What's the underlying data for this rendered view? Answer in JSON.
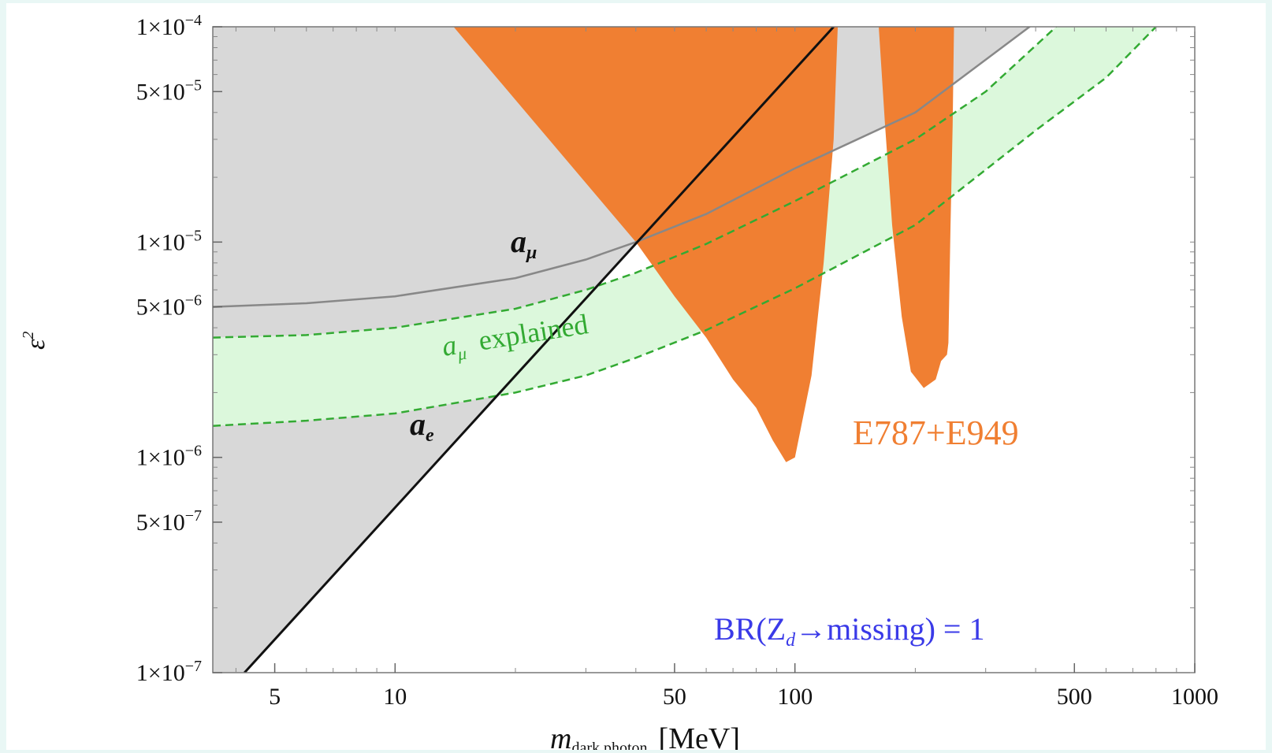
{
  "chart_data": {
    "type": "area",
    "title": "",
    "xlabel_main": "m",
    "xlabel_sub": "dark photon",
    "xlabel_unit": "[MeV]",
    "ylabel": "ε",
    "ylabel_sup": "2",
    "x_scale": "log",
    "y_scale": "log",
    "xlim": [
      3.5,
      1000
    ],
    "ylim": [
      1e-07,
      0.0001
    ],
    "x_ticks": [
      {
        "value": 5,
        "label": "5"
      },
      {
        "value": 10,
        "label": "10"
      },
      {
        "value": 50,
        "label": "50"
      },
      {
        "value": 100,
        "label": "100"
      },
      {
        "value": 500,
        "label": "500"
      },
      {
        "value": 1000,
        "label": "1000"
      }
    ],
    "y_ticks": [
      {
        "value": 0.0001,
        "mant": "1",
        "exp": "−4"
      },
      {
        "value": 5e-05,
        "mant": "5",
        "exp": "−5"
      },
      {
        "value": 1e-05,
        "mant": "1",
        "exp": "−5"
      },
      {
        "value": 5e-06,
        "mant": "5",
        "exp": "−6"
      },
      {
        "value": 1e-06,
        "mant": "1",
        "exp": "−6"
      },
      {
        "value": 5e-07,
        "mant": "5",
        "exp": "−7"
      },
      {
        "value": 1e-07,
        "mant": "1",
        "exp": "−7"
      }
    ],
    "tick_times": "×10",
    "curves": {
      "a_mu_bound": [
        [
          3.5,
          5e-06
        ],
        [
          6,
          5.2e-06
        ],
        [
          10,
          5.6e-06
        ],
        [
          20,
          6.8e-06
        ],
        [
          30,
          8.3e-06
        ],
        [
          40,
          1e-05
        ],
        [
          60,
          1.35e-05
        ],
        [
          100,
          2.2e-05
        ],
        [
          200,
          4e-05
        ],
        [
          400,
          0.000105
        ]
      ],
      "a_mu_band_upper": [
        [
          3.5,
          3.6e-06
        ],
        [
          6,
          3.7e-06
        ],
        [
          10,
          4e-06
        ],
        [
          20,
          4.9e-06
        ],
        [
          30,
          6e-06
        ],
        [
          40,
          7.2e-06
        ],
        [
          60,
          9.8e-06
        ],
        [
          100,
          1.55e-05
        ],
        [
          200,
          3e-05
        ],
        [
          300,
          5e-05
        ],
        [
          450,
          0.0001
        ]
      ],
      "a_mu_band_lower": [
        [
          3.5,
          1.4e-06
        ],
        [
          6,
          1.48e-06
        ],
        [
          10,
          1.6e-06
        ],
        [
          20,
          2e-06
        ],
        [
          30,
          2.4e-06
        ],
        [
          40,
          2.9e-06
        ],
        [
          60,
          3.9e-06
        ],
        [
          100,
          6.1e-06
        ],
        [
          200,
          1.2e-05
        ],
        [
          400,
          3.3e-05
        ],
        [
          600,
          5.8e-05
        ],
        [
          800,
          0.0001
        ]
      ],
      "a_e_line": [
        [
          4.2,
          1e-07
        ],
        [
          125,
          0.0001
        ]
      ],
      "e787_e949_region_1": [
        [
          14,
          0.0001
        ],
        [
          40,
          1e-05
        ],
        [
          50,
          5.6e-06
        ],
        [
          60,
          3.6e-06
        ],
        [
          70,
          2.3e-06
        ],
        [
          80,
          1.7e-06
        ],
        [
          88,
          1.2e-06
        ],
        [
          95,
          9.5e-07
        ],
        [
          100,
          1e-06
        ],
        [
          110,
          2.4e-06
        ],
        [
          118,
          8e-06
        ],
        [
          125,
          3e-05
        ],
        [
          128,
          0.0001
        ]
      ],
      "e787_e949_region_2": [
        [
          162,
          0.0001
        ],
        [
          168,
          3.5e-05
        ],
        [
          175,
          1.2e-05
        ],
        [
          185,
          4.5e-06
        ],
        [
          195,
          2.5e-06
        ],
        [
          210,
          2.1e-06
        ],
        [
          225,
          2.3e-06
        ],
        [
          232,
          2.8e-06
        ],
        [
          240,
          3e-06
        ],
        [
          242,
          3.4e-06
        ],
        [
          245,
          1.2e-05
        ],
        [
          248,
          3.5e-05
        ],
        [
          250,
          0.0001
        ]
      ],
      "gray_gap_region": [
        [
          128,
          0.0001
        ],
        [
          160,
          0.0001
        ],
        [
          159,
          5e-05
        ],
        [
          130,
          5e-05
        ]
      ]
    },
    "annotations": {
      "a_mu_label": "a",
      "a_mu_sub": "μ",
      "a_e_label": "a",
      "a_e_sub": "e",
      "explained_a": "a",
      "explained_sub": "μ",
      "explained_text": "explained",
      "experiment": "E787+E949",
      "br_text": "BR(Z",
      "br_sub": "d",
      "br_rest": "→missing) = 1"
    },
    "colors": {
      "excluded_gray": "#d8d8d8",
      "orange": "#f07f32",
      "green_band": "#dcf8dc",
      "green_dashed": "#33aa33",
      "gray_curve": "#888888",
      "ae_line": "#111111",
      "experiment_label": "#f07f32",
      "br_label": "#3a3ae8"
    }
  }
}
